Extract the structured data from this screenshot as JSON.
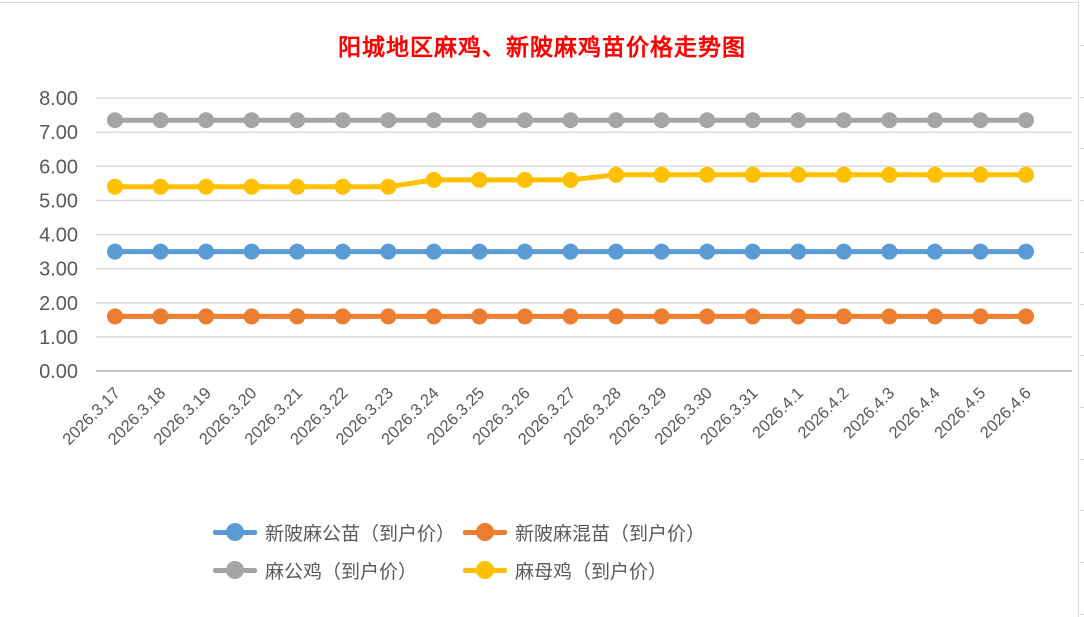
{
  "title": {
    "text": "阳城地区麻鸡、新陂麻鸡苗价格走势图",
    "color": "#FF0000"
  },
  "axis": {
    "label_color": "#595959",
    "gridline_color": "#D9D9D9",
    "baseline_color": "#C6C6C6"
  },
  "chart_data": {
    "type": "line",
    "title": "阳城地区麻鸡、新陂麻鸡苗价格走势图",
    "xlabel": "",
    "ylabel": "",
    "ylim": [
      0,
      8
    ],
    "ytick_step": 1,
    "ytick_decimals": 2,
    "grid": true,
    "legend_position": "bottom",
    "categories": [
      "2026.3.17",
      "2026.3.18",
      "2026.3.19",
      "2026.3.20",
      "2026.3.21",
      "2026.3.22",
      "2026.3.23",
      "2026.3.24",
      "2026.3.25",
      "2026.3.26",
      "2026.3.27",
      "2026.3.28",
      "2026.3.29",
      "2026.3.30",
      "2026.3.31",
      "2026.4.1",
      "2026.4.2",
      "2026.4.3",
      "2026.4.4",
      "2026.4.5",
      "2026.4.6"
    ],
    "series": [
      {
        "name": "新陂麻公苗（到户价）",
        "color": "#5B9BD5",
        "values": [
          3.5,
          3.5,
          3.5,
          3.5,
          3.5,
          3.5,
          3.5,
          3.5,
          3.5,
          3.5,
          3.5,
          3.5,
          3.5,
          3.5,
          3.5,
          3.5,
          3.5,
          3.5,
          3.5,
          3.5,
          3.5
        ]
      },
      {
        "name": "新陂麻混苗（到户价）",
        "color": "#ED7D31",
        "values": [
          1.6,
          1.6,
          1.6,
          1.6,
          1.6,
          1.6,
          1.6,
          1.6,
          1.6,
          1.6,
          1.6,
          1.6,
          1.6,
          1.6,
          1.6,
          1.6,
          1.6,
          1.6,
          1.6,
          1.6,
          1.6
        ]
      },
      {
        "name": "麻公鸡（到户价）",
        "color": "#A5A5A5",
        "values": [
          7.35,
          7.35,
          7.35,
          7.35,
          7.35,
          7.35,
          7.35,
          7.35,
          7.35,
          7.35,
          7.35,
          7.35,
          7.35,
          7.35,
          7.35,
          7.35,
          7.35,
          7.35,
          7.35,
          7.35,
          7.35
        ]
      },
      {
        "name": "麻母鸡（到户价）",
        "color": "#FFC000",
        "values": [
          5.4,
          5.4,
          5.4,
          5.4,
          5.4,
          5.4,
          5.4,
          5.6,
          5.6,
          5.6,
          5.6,
          5.75,
          5.75,
          5.75,
          5.75,
          5.75,
          5.75,
          5.75,
          5.75,
          5.75,
          5.75
        ]
      }
    ]
  }
}
